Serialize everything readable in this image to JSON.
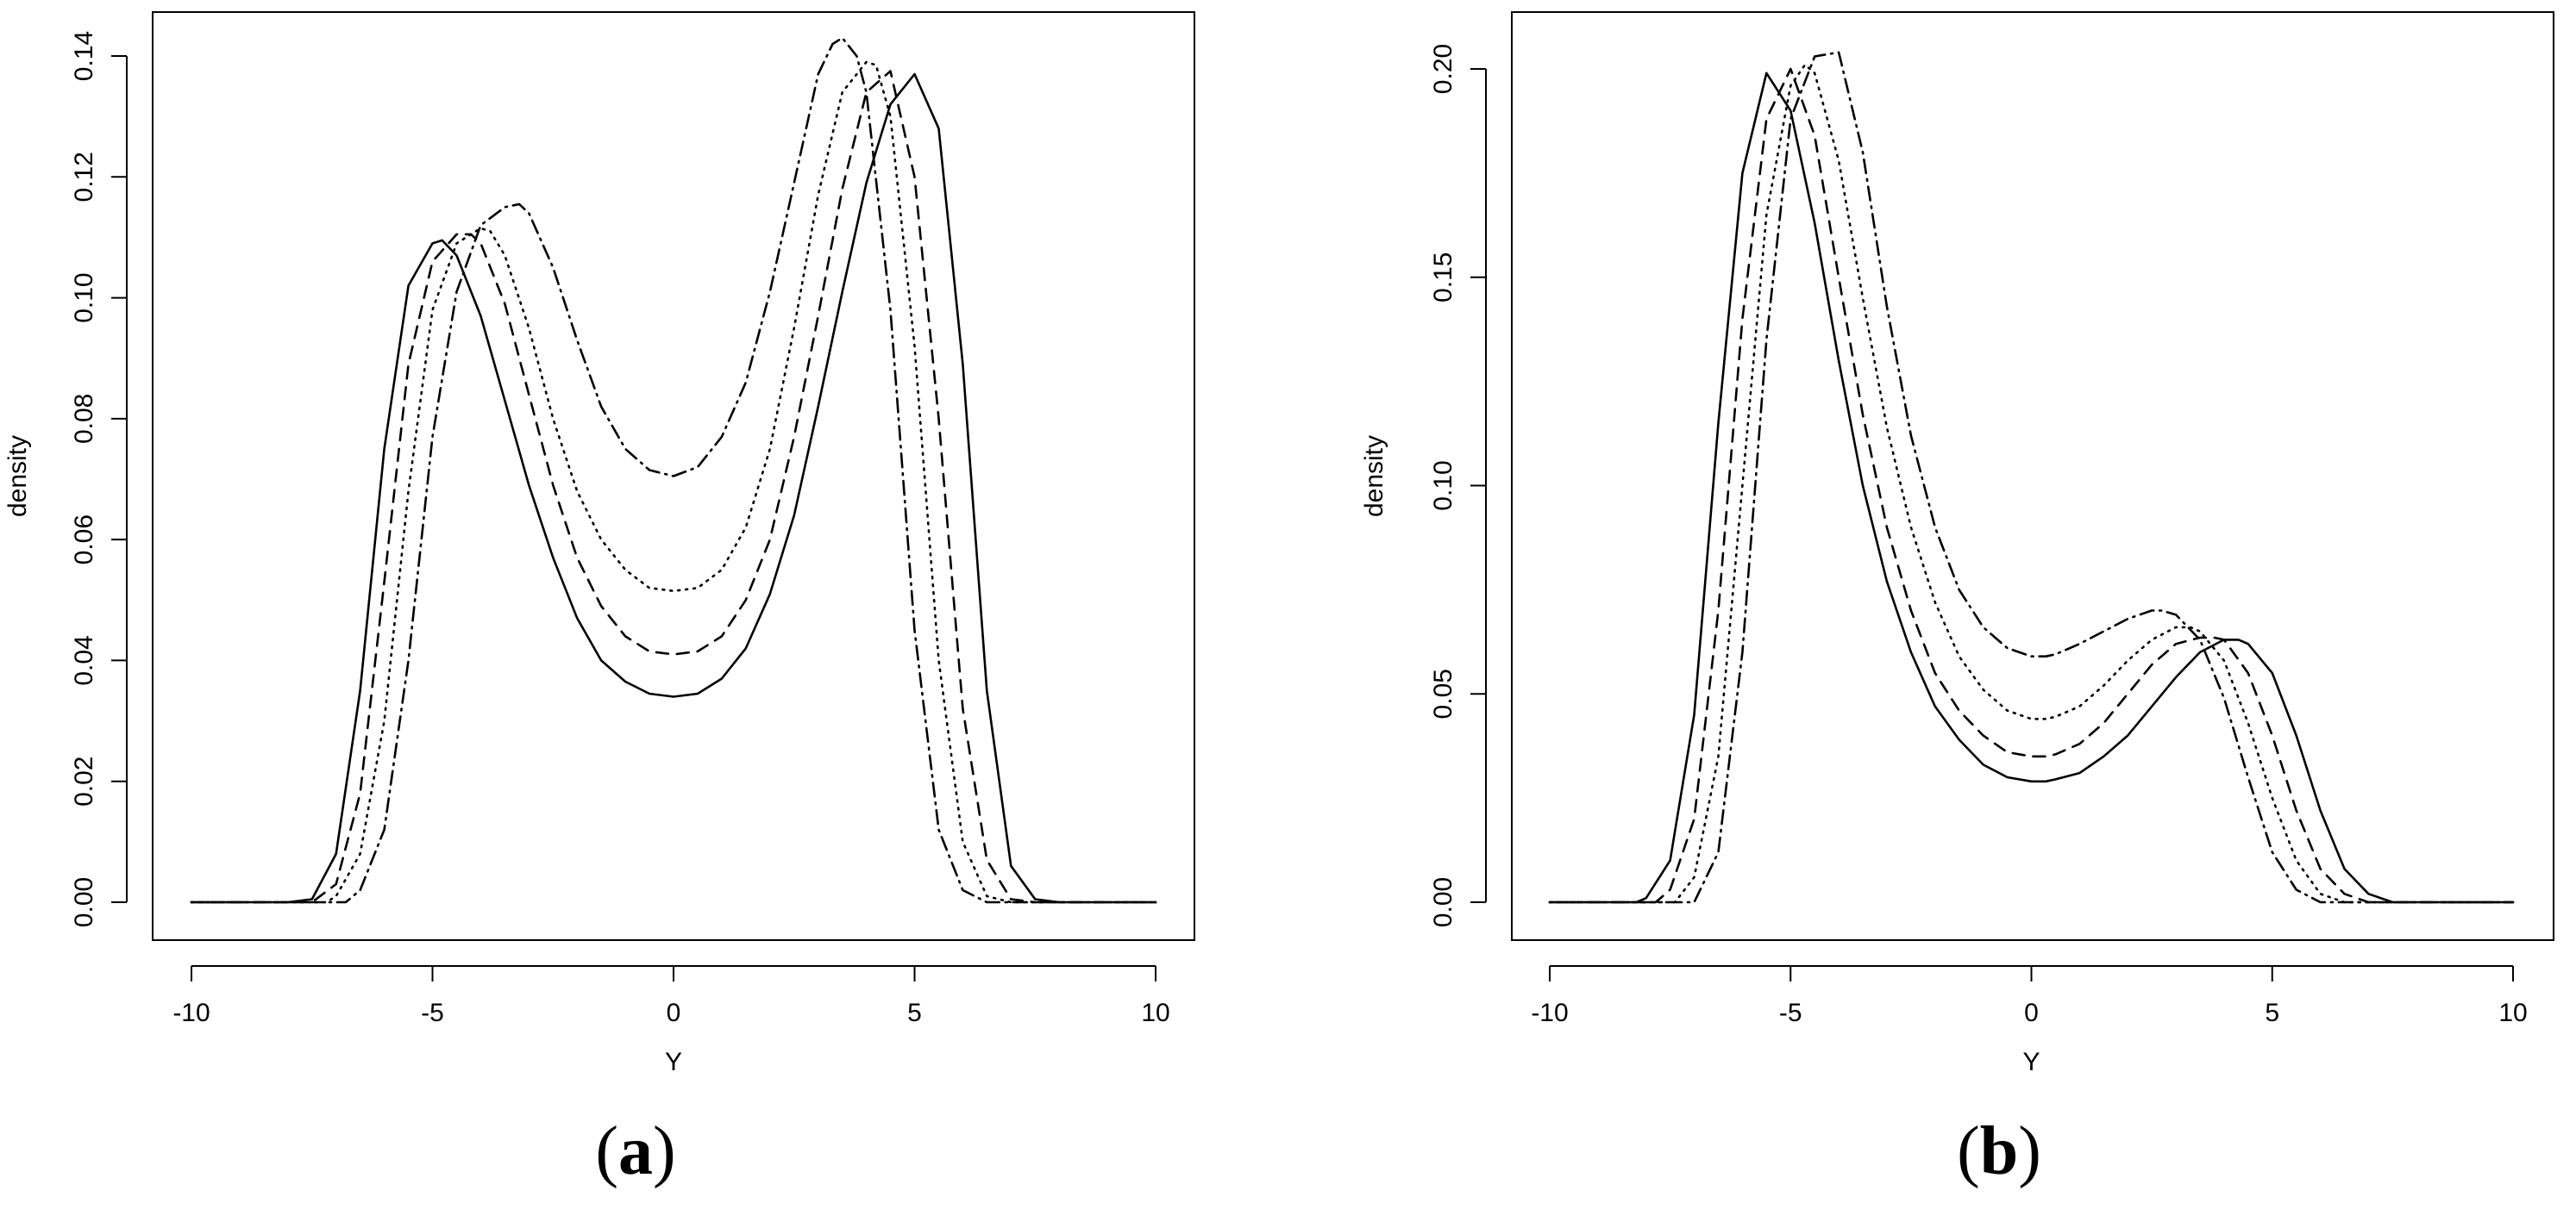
{
  "chart_data": [
    {
      "type": "line",
      "panel_label": "(a)",
      "panel_letter": "a",
      "xlabel": "Y",
      "ylabel": "density",
      "xlim": [
        -10,
        10
      ],
      "ylim": [
        0,
        0.14
      ],
      "xticks": [
        -10,
        -5,
        0,
        5,
        10
      ],
      "yticks": [
        0.0,
        0.02,
        0.04,
        0.06,
        0.08,
        0.1,
        0.12,
        0.14
      ],
      "ytick_labels": [
        "0.00",
        "0.02",
        "0.04",
        "0.06",
        "0.08",
        "0.10",
        "0.12",
        "0.14"
      ],
      "grid": false,
      "series": [
        {
          "dash": "solid",
          "x": [
            -10,
            -8,
            -7.5,
            -7,
            -6.5,
            -6,
            -5.5,
            -5,
            -4.8,
            -4.5,
            -4,
            -3.5,
            -3,
            -2.5,
            -2,
            -1.5,
            -1,
            -0.5,
            0,
            0.5,
            1,
            1.5,
            2,
            2.5,
            3,
            3.5,
            4,
            4.5,
            5,
            5.5,
            6,
            6.5,
            7,
            7.5,
            8,
            10
          ],
          "y": [
            0,
            0,
            0.0005,
            0.008,
            0.035,
            0.075,
            0.102,
            0.109,
            0.1095,
            0.107,
            0.097,
            0.083,
            0.069,
            0.057,
            0.047,
            0.04,
            0.0365,
            0.0345,
            0.034,
            0.0345,
            0.037,
            0.042,
            0.051,
            0.064,
            0.082,
            0.101,
            0.119,
            0.132,
            0.137,
            0.128,
            0.089,
            0.035,
            0.006,
            0.0005,
            0,
            0
          ]
        },
        {
          "dash": "dashed",
          "x": [
            -10,
            -7.5,
            -7,
            -6.5,
            -6,
            -5.5,
            -5,
            -4.5,
            -4.2,
            -4,
            -3.5,
            -3,
            -2.5,
            -2,
            -1.5,
            -1,
            -0.5,
            0,
            0.5,
            1,
            1.5,
            2,
            2.5,
            3,
            3.5,
            4,
            4.5,
            5,
            5.5,
            6,
            6.5,
            7,
            7.5,
            10
          ],
          "y": [
            0,
            0,
            0.003,
            0.018,
            0.053,
            0.089,
            0.106,
            0.1105,
            0.1105,
            0.109,
            0.099,
            0.084,
            0.069,
            0.057,
            0.049,
            0.044,
            0.0415,
            0.041,
            0.0415,
            0.044,
            0.05,
            0.06,
            0.077,
            0.097,
            0.118,
            0.134,
            0.1375,
            0.12,
            0.08,
            0.032,
            0.007,
            0.0005,
            0,
            0
          ]
        },
        {
          "dash": "dotted",
          "x": [
            -10,
            -7.2,
            -7,
            -6.5,
            -6,
            -5.5,
            -5,
            -4.5,
            -4,
            -3.8,
            -3.5,
            -3,
            -2.5,
            -2,
            -1.5,
            -1,
            -0.5,
            0,
            0.5,
            1,
            1.5,
            2,
            2.5,
            3,
            3.5,
            4,
            4.2,
            4.5,
            5,
            5.5,
            6,
            6.5,
            7,
            10
          ],
          "y": [
            0,
            0,
            0.001,
            0.008,
            0.03,
            0.068,
            0.098,
            0.109,
            0.1115,
            0.111,
            0.107,
            0.095,
            0.08,
            0.068,
            0.06,
            0.055,
            0.052,
            0.0515,
            0.052,
            0.055,
            0.062,
            0.075,
            0.095,
            0.117,
            0.134,
            0.139,
            0.1385,
            0.13,
            0.092,
            0.04,
            0.01,
            0.001,
            0,
            0
          ]
        },
        {
          "dash": "dotdash",
          "x": [
            -10,
            -6.8,
            -6.5,
            -6,
            -5.5,
            -5,
            -4.5,
            -4,
            -3.5,
            -3.2,
            -3,
            -2.5,
            -2,
            -1.5,
            -1,
            -0.5,
            0,
            0.5,
            1,
            1.5,
            2,
            2.5,
            3,
            3.3,
            3.5,
            3.8,
            4,
            4.5,
            5,
            5.5,
            6,
            6.5,
            10
          ],
          "y": [
            0,
            0,
            0.002,
            0.012,
            0.04,
            0.077,
            0.101,
            0.112,
            0.115,
            0.1155,
            0.114,
            0.105,
            0.093,
            0.082,
            0.075,
            0.0715,
            0.0705,
            0.072,
            0.077,
            0.086,
            0.101,
            0.119,
            0.137,
            0.142,
            0.143,
            0.14,
            0.134,
            0.098,
            0.045,
            0.012,
            0.002,
            0,
            0
          ]
        }
      ]
    },
    {
      "type": "line",
      "panel_label": "(b)",
      "panel_letter": "b",
      "xlabel": "Y",
      "ylabel": "density",
      "xlim": [
        -10,
        10
      ],
      "ylim": [
        0,
        0.2
      ],
      "xticks": [
        -10,
        -5,
        0,
        5,
        10
      ],
      "yticks": [
        0.0,
        0.05,
        0.1,
        0.15,
        0.2
      ],
      "ytick_labels": [
        "0.00",
        "0.05",
        "0.10",
        "0.15",
        "0.20"
      ],
      "grid": false,
      "series": [
        {
          "dash": "solid",
          "x": [
            -10,
            -8.2,
            -8,
            -7.5,
            -7,
            -6.5,
            -6,
            -5.5,
            -5,
            -4.5,
            -4,
            -3.5,
            -3,
            -2.5,
            -2,
            -1.5,
            -1,
            -0.5,
            0,
            0.3,
            0.5,
            1,
            1.5,
            2,
            2.5,
            3,
            3.5,
            4,
            4.3,
            4.5,
            5,
            5.5,
            6,
            6.5,
            7,
            7.5,
            10
          ],
          "y": [
            0,
            0,
            0.001,
            0.01,
            0.045,
            0.115,
            0.175,
            0.199,
            0.19,
            0.163,
            0.13,
            0.1,
            0.077,
            0.06,
            0.047,
            0.039,
            0.033,
            0.03,
            0.029,
            0.029,
            0.0295,
            0.031,
            0.035,
            0.04,
            0.047,
            0.054,
            0.06,
            0.063,
            0.063,
            0.062,
            0.055,
            0.04,
            0.022,
            0.008,
            0.002,
            0,
            0
          ]
        },
        {
          "dash": "dashed",
          "x": [
            -10,
            -7.8,
            -7.5,
            -7,
            -6.5,
            -6,
            -5.5,
            -5,
            -4.5,
            -4,
            -3.5,
            -3,
            -2.5,
            -2,
            -1.5,
            -1,
            -0.5,
            0,
            0.3,
            0.5,
            1,
            1.5,
            2,
            2.5,
            3,
            3.5,
            3.8,
            4,
            4.5,
            5,
            5.5,
            6,
            6.5,
            7,
            10
          ],
          "y": [
            0,
            0,
            0.003,
            0.02,
            0.07,
            0.14,
            0.188,
            0.2,
            0.184,
            0.15,
            0.117,
            0.09,
            0.07,
            0.055,
            0.046,
            0.04,
            0.036,
            0.035,
            0.035,
            0.0355,
            0.038,
            0.043,
            0.05,
            0.057,
            0.062,
            0.0635,
            0.0635,
            0.063,
            0.055,
            0.04,
            0.022,
            0.008,
            0.002,
            0,
            0
          ]
        },
        {
          "dash": "dotted",
          "x": [
            -10,
            -7.4,
            -7,
            -6.5,
            -6,
            -5.5,
            -5,
            -4.7,
            -4.5,
            -4,
            -3.5,
            -3,
            -2.5,
            -2,
            -1.5,
            -1,
            -0.5,
            0,
            0.3,
            0.5,
            1,
            1.5,
            2,
            2.5,
            3,
            3.3,
            3.5,
            4,
            4.5,
            5,
            5.5,
            6,
            6.5,
            10
          ],
          "y": [
            0,
            0,
            0.006,
            0.035,
            0.1,
            0.165,
            0.196,
            0.201,
            0.199,
            0.178,
            0.145,
            0.114,
            0.09,
            0.072,
            0.059,
            0.051,
            0.046,
            0.044,
            0.044,
            0.0445,
            0.047,
            0.052,
            0.058,
            0.063,
            0.066,
            0.066,
            0.065,
            0.058,
            0.043,
            0.025,
            0.01,
            0.002,
            0,
            0
          ]
        },
        {
          "dash": "dotdash",
          "x": [
            -10,
            -7,
            -6.5,
            -6,
            -5.5,
            -5,
            -4.5,
            -4,
            -3.5,
            -3,
            -2.5,
            -2,
            -1.5,
            -1,
            -0.5,
            0,
            0.3,
            0.5,
            1,
            1.5,
            2,
            2.5,
            2.7,
            3,
            3.5,
            4,
            4.5,
            5,
            5.5,
            6,
            10
          ],
          "y": [
            0,
            0,
            0.012,
            0.06,
            0.135,
            0.188,
            0.203,
            0.204,
            0.18,
            0.143,
            0.112,
            0.09,
            0.075,
            0.066,
            0.061,
            0.059,
            0.059,
            0.0595,
            0.062,
            0.065,
            0.068,
            0.07,
            0.07,
            0.069,
            0.063,
            0.049,
            0.03,
            0.012,
            0.003,
            0,
            0
          ]
        }
      ]
    }
  ]
}
